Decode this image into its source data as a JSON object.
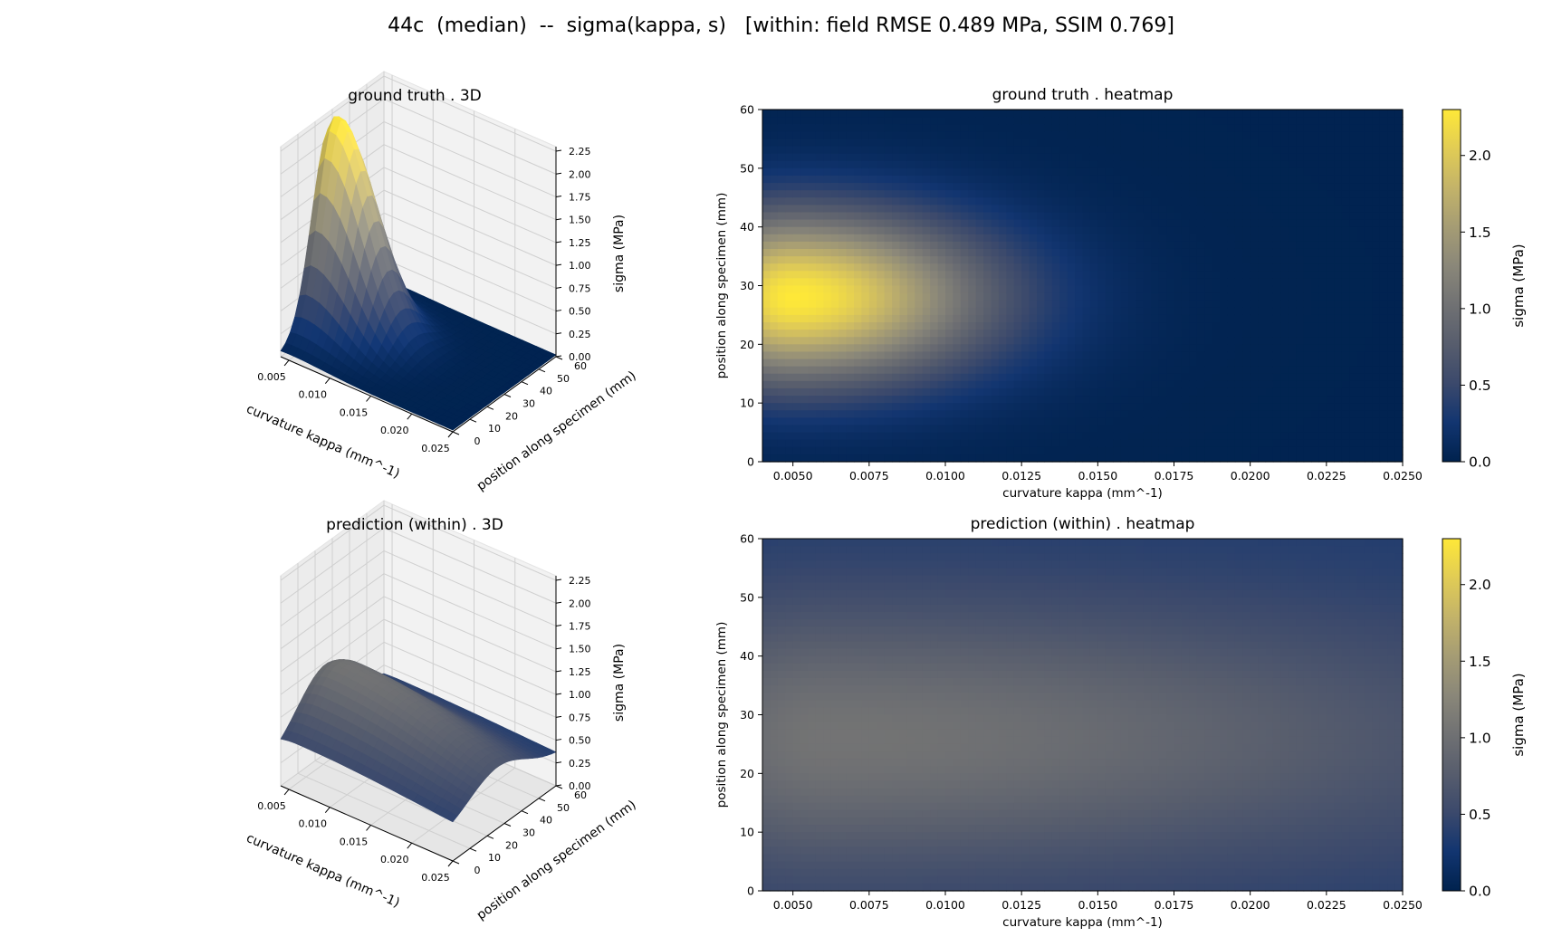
{
  "figure": {
    "suptitle": "44c  (median)  --  sigma(kappa, s)   [within: field RMSE 0.489 MPa, SSIM 0.769]"
  },
  "colormap": {
    "name": "cividis",
    "stops": [
      "#00224e",
      "#123570",
      "#3b496c",
      "#575d6d",
      "#707173",
      "#8a8779",
      "#a59c74",
      "#c3b369",
      "#e1cc55",
      "#fee838"
    ]
  },
  "chart_data": [
    {
      "type": "surface",
      "title": "ground truth  .  3D",
      "xlabel": "curvature kappa (mm^-1)",
      "ylabel": "position along specimen (mm)",
      "zlabel": "sigma (MPa)",
      "xticks": [
        "0.005",
        "0.010",
        "0.015",
        "0.020",
        "0.025"
      ],
      "yticks": [
        "0",
        "10",
        "20",
        "30",
        "40",
        "50",
        "60"
      ],
      "zticks": [
        "0.00",
        "0.25",
        "0.50",
        "0.75",
        "1.00",
        "1.25",
        "1.50",
        "1.75",
        "2.00",
        "2.25"
      ],
      "xlim": [
        0.004,
        0.025
      ],
      "ylim": [
        0,
        60
      ],
      "zlim": [
        0,
        2.3
      ],
      "field": {
        "peak": 2.3,
        "peak_kappa": 0.005,
        "rise_kappa": 0.0035,
        "decay_kappa": 0.0062,
        "center_s": 28,
        "width_s": 13.5,
        "floor": 0.02
      }
    },
    {
      "type": "heatmap",
      "title": "ground truth  .  heatmap",
      "xlabel": "curvature kappa (mm^-1)",
      "ylabel": "position along specimen (mm)",
      "xticks": [
        "0.0050",
        "0.0075",
        "0.0100",
        "0.0125",
        "0.0150",
        "0.0175",
        "0.0200",
        "0.0225",
        "0.0250"
      ],
      "yticks": [
        "0",
        "10",
        "20",
        "30",
        "40",
        "50",
        "60"
      ],
      "xlim": [
        0.004,
        0.025
      ],
      "ylim": [
        0,
        60
      ],
      "colorbar": {
        "label": "sigma (MPa)",
        "ticks": [
          "0.0",
          "0.5",
          "1.0",
          "1.5",
          "2.0"
        ],
        "range": [
          0,
          2.3
        ]
      },
      "field": {
        "peak": 2.3,
        "peak_kappa": 0.005,
        "rise_kappa": 0.0035,
        "decay_kappa": 0.0062,
        "center_s": 28,
        "width_s": 13.5,
        "floor": 0.02
      }
    },
    {
      "type": "surface",
      "title": "prediction (within)  .  3D",
      "xlabel": "curvature kappa (mm^-1)",
      "ylabel": "position along specimen (mm)",
      "zlabel": "sigma (MPa)",
      "xticks": [
        "0.005",
        "0.010",
        "0.015",
        "0.020",
        "0.025"
      ],
      "yticks": [
        "0",
        "10",
        "20",
        "30",
        "40",
        "50",
        "60"
      ],
      "zticks": [
        "0.00",
        "0.25",
        "0.50",
        "0.75",
        "1.00",
        "1.25",
        "1.50",
        "1.75",
        "2.00",
        "2.25"
      ],
      "xlim": [
        0.004,
        0.025
      ],
      "ylim": [
        0,
        60
      ],
      "zlim": [
        0,
        2.3
      ],
      "field": {
        "peak": 1.05,
        "peak_kappa": 0.006,
        "rise_kappa": 0.006,
        "decay_kappa": 0.022,
        "center_s": 26,
        "width_s": 22,
        "floor": 0.33
      }
    },
    {
      "type": "heatmap",
      "title": "prediction (within)  .  heatmap",
      "xlabel": "curvature kappa (mm^-1)",
      "ylabel": "position along specimen (mm)",
      "xticks": [
        "0.0050",
        "0.0075",
        "0.0100",
        "0.0125",
        "0.0150",
        "0.0175",
        "0.0200",
        "0.0225",
        "0.0250"
      ],
      "yticks": [
        "0",
        "10",
        "20",
        "30",
        "40",
        "50",
        "60"
      ],
      "xlim": [
        0.004,
        0.025
      ],
      "ylim": [
        0,
        60
      ],
      "colorbar": {
        "label": "sigma (MPa)",
        "ticks": [
          "0.0",
          "0.5",
          "1.0",
          "1.5",
          "2.0"
        ],
        "range": [
          0,
          2.3
        ]
      },
      "field": {
        "peak": 1.05,
        "peak_kappa": 0.006,
        "rise_kappa": 0.006,
        "decay_kappa": 0.022,
        "center_s": 26,
        "width_s": 22,
        "floor": 0.33
      }
    }
  ]
}
